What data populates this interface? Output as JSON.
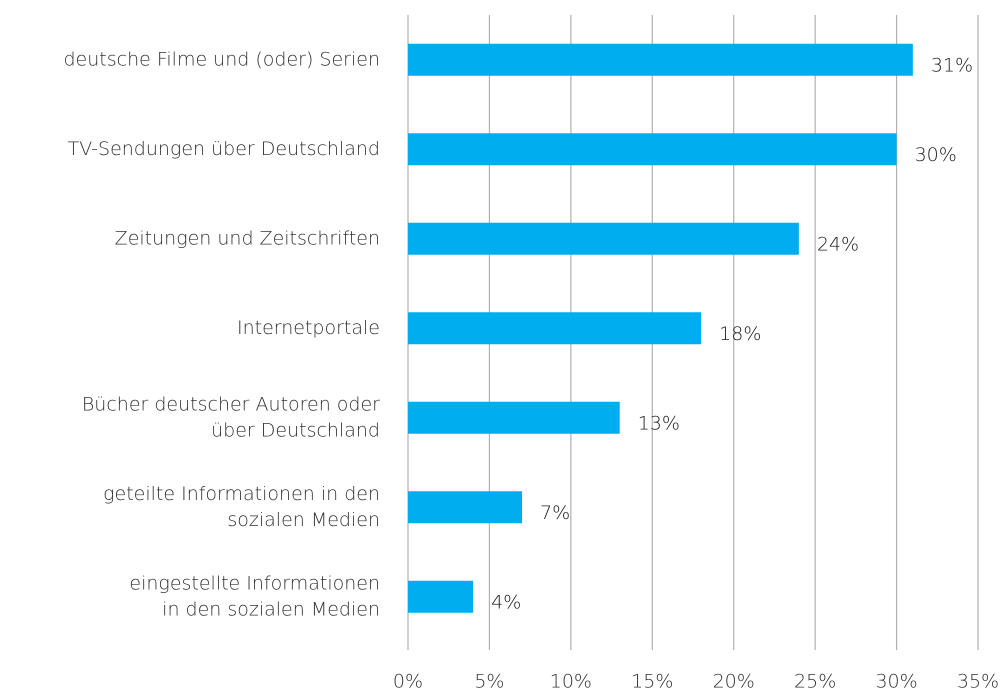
{
  "chart_data": {
    "type": "hbar",
    "categories": [
      [
        "deutsche Filme und (oder) Serien"
      ],
      [
        "TV-Sendungen über Deutschland"
      ],
      [
        "Zeitungen und Zeitschriften"
      ],
      [
        "Internetportale"
      ],
      [
        "Bücher deutscher Autoren oder",
        "über Deutschland"
      ],
      [
        "geteilte Informationen in den",
        "sozialen Medien"
      ],
      [
        "eingestellte Informationen",
        "in den sozialen Medien"
      ]
    ],
    "values": [
      31,
      30,
      24,
      18,
      13,
      7,
      4
    ],
    "value_labels": [
      "31%",
      "30%",
      "24%",
      "18%",
      "13%",
      "7%",
      "4%"
    ],
    "color": "#00aeef",
    "xlim": [
      0,
      35
    ],
    "xticks": [
      {
        "value": 0,
        "label": "0%"
      },
      {
        "value": 5,
        "label": "5%"
      },
      {
        "value": 10,
        "label": "10%"
      },
      {
        "value": 15,
        "label": "15%"
      },
      {
        "value": 20,
        "label": "20%"
      },
      {
        "value": 25,
        "label": "25%"
      },
      {
        "value": 30,
        "label": "30%"
      },
      {
        "value": 35,
        "label": "35%"
      }
    ],
    "grid": true
  }
}
